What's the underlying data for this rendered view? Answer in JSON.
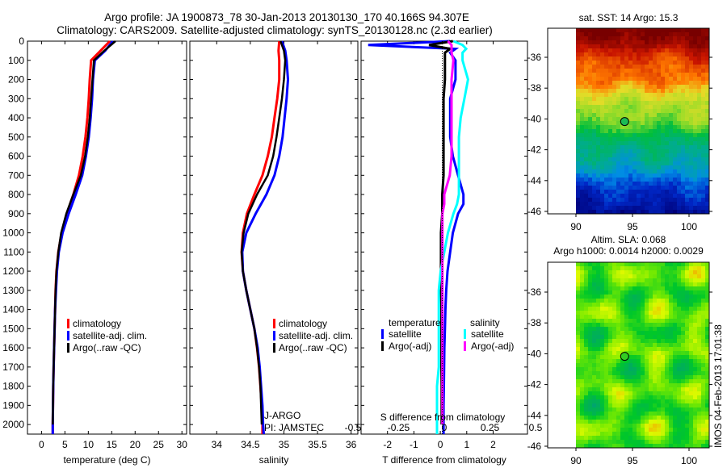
{
  "title_line1": "Argo profile: JA 1900873_78 30-Jan-2013 20130130_170 40.166S 94.307E",
  "title_line2": "Climatology: CARS2009. Satellite-adjusted climatology: synTS_20130128.nc (2.3d earlier)",
  "watermark": "IMOS 04-Feb-2013 17:01:38",
  "colors": {
    "climatology": "#ff0000",
    "satellite": "#0000ff",
    "argo": "#000000",
    "sal_satellite": "#00ffff",
    "sal_argo": "#ff00ff"
  },
  "chart_data": [
    {
      "type": "line",
      "xlabel": "temperature (deg C)",
      "ylabel": "",
      "xlim": [
        -3,
        31
      ],
      "ylim": [
        2050,
        0
      ],
      "xticks": [
        "0",
        "5",
        "10",
        "15",
        "20",
        "25",
        "30"
      ],
      "yticks": [
        "0",
        "100",
        "200",
        "300",
        "400",
        "500",
        "600",
        "700",
        "800",
        "900",
        "1000",
        "1100",
        "1200",
        "1300",
        "1400",
        "1500",
        "1600",
        "1700",
        "1800",
        "1900",
        "2000"
      ],
      "depth": [
        0,
        50,
        100,
        200,
        300,
        400,
        500,
        600,
        700,
        800,
        900,
        1000,
        1100,
        1200,
        1300,
        1400,
        1500,
        1600,
        1700,
        1800,
        1900,
        2000,
        2050
      ],
      "legend": [
        "climatology",
        "satellite-adj. clim.",
        "Argo(..raw -QC)"
      ],
      "series": [
        {
          "name": "climatology",
          "values": [
            14.6,
            12.6,
            10.6,
            10.3,
            10.1,
            9.8,
            9.4,
            8.8,
            8.0,
            6.8,
            5.4,
            4.3,
            3.6,
            3.2,
            3.0,
            2.9,
            2.8,
            2.7,
            2.6,
            2.5,
            2.45,
            2.4,
            2.4
          ]
        },
        {
          "name": "satellite-adj. clim.",
          "values": [
            15.2,
            13.6,
            11.4,
            11.0,
            10.8,
            10.5,
            10.1,
            9.5,
            8.7,
            7.3,
            5.8,
            4.5,
            3.7,
            3.3,
            3.1,
            2.9,
            2.8,
            2.7,
            2.6,
            2.5,
            2.45,
            2.4,
            2.4
          ]
        },
        {
          "name": "Argo(..raw -QC)",
          "values": [
            15.8,
            13.4,
            11.2,
            10.9,
            10.6,
            10.3,
            9.9,
            9.3,
            8.4,
            6.8,
            5.3,
            4.2,
            3.6,
            3.2,
            3.0,
            2.9,
            2.8,
            2.7,
            2.6,
            2.5,
            2.45,
            2.4,
            null
          ]
        }
      ]
    },
    {
      "type": "line",
      "xlabel": "salinity",
      "xlim": [
        33.6,
        36.1
      ],
      "ylim": [
        2050,
        0
      ],
      "xticks": [
        "34",
        "34.5",
        "35",
        "35.5",
        "36"
      ],
      "depth": [
        0,
        50,
        100,
        200,
        300,
        400,
        500,
        600,
        700,
        800,
        900,
        1000,
        1100,
        1200,
        1300,
        1400,
        1500,
        1600,
        1700,
        1800,
        1900,
        2000,
        2050
      ],
      "legend": [
        "climatology",
        "satellite-adj. clim.",
        "Argo(..raw -QC)"
      ],
      "annotation": [
        "J-ARGO",
        "PI: JAMSTEC"
      ],
      "series": [
        {
          "name": "climatology",
          "values": [
            34.93,
            34.92,
            34.93,
            34.93,
            34.9,
            34.86,
            34.82,
            34.76,
            34.68,
            34.56,
            34.45,
            34.39,
            34.37,
            34.39,
            34.44,
            34.5,
            34.56,
            34.6,
            34.63,
            34.65,
            34.67,
            34.68,
            34.68
          ]
        },
        {
          "name": "satellite-adj. clim.",
          "values": [
            34.97,
            35.02,
            35.04,
            35.06,
            35.04,
            35.01,
            34.98,
            34.93,
            34.86,
            34.74,
            34.58,
            34.44,
            34.38,
            34.39,
            34.44,
            34.5,
            34.56,
            34.61,
            34.64,
            34.66,
            34.68,
            34.69,
            34.7
          ]
        },
        {
          "name": "Argo(..raw -QC)",
          "values": [
            34.95,
            35.0,
            35.02,
            35.0,
            34.97,
            34.93,
            34.89,
            34.84,
            34.76,
            34.6,
            34.47,
            34.4,
            34.37,
            34.39,
            34.44,
            34.5,
            34.56,
            34.6,
            34.63,
            34.65,
            34.66,
            34.67,
            null
          ]
        }
      ]
    },
    {
      "type": "line",
      "xlabel": "T difference from climatology",
      "x2label": "S difference from climatology",
      "xlim": [
        -3,
        3.3
      ],
      "ylim": [
        2050,
        0
      ],
      "xticks": [
        "-2",
        "-1",
        "0",
        "1",
        "2"
      ],
      "x2ticks": [
        "-0.5",
        "-0.25",
        "0",
        "0.25",
        "0.5"
      ],
      "depth": [
        0,
        20,
        40,
        60,
        100,
        200,
        300,
        400,
        500,
        600,
        700,
        800,
        850,
        900,
        1000,
        1100,
        1200,
        1300,
        1400,
        1500,
        1600,
        1700,
        1800,
        1900,
        2000,
        2050
      ],
      "legend_temperature_title": "temperature",
      "legend_salinity_title": "salinity",
      "legend": [
        "satellite",
        "Argo(-adj)",
        "satellite",
        "Argo(-adj)"
      ],
      "series": [
        {
          "name": "temperature satellite",
          "values": [
            0.3,
            -2.8,
            0.5,
            0.3,
            0.5,
            0.5,
            0.3,
            0.3,
            0.3,
            0.4,
            0.6,
            0.8,
            0.8,
            0.6,
            0.4,
            0.3,
            0.2,
            0.15,
            0.12,
            0.1,
            0.08,
            0.07,
            0.06,
            0.05,
            0.05,
            0.05
          ]
        },
        {
          "name": "temperature Argo(-adj)",
          "values": [
            0.4,
            -0.5,
            0.3,
            0.1,
            0.1,
            0.1,
            0.05,
            0.05,
            0.05,
            0.05,
            0.05,
            0.0,
            0.0,
            0.0,
            -0.05,
            -0.05,
            -0.05,
            -0.05,
            -0.03,
            -0.03,
            -0.03,
            -0.03,
            -0.02,
            -0.02,
            -0.02,
            null
          ]
        },
        {
          "name": "salinity satellite",
          "values": [
            0.05,
            0.1,
            0.12,
            0.1,
            0.1,
            0.13,
            0.11,
            0.09,
            0.08,
            0.08,
            0.08,
            0.08,
            0.07,
            0.05,
            0.02,
            0.0,
            -0.02,
            -0.03,
            -0.03,
            -0.03,
            -0.03,
            -0.03,
            -0.04,
            -0.04,
            -0.04,
            -0.04
          ]
        },
        {
          "name": "salinity Argo(-adj)",
          "values": [
            0.02,
            0.04,
            0.04,
            0.04,
            0.05,
            0.04,
            0.04,
            0.04,
            0.04,
            0.04,
            0.03,
            0.0,
            0.0,
            -0.01,
            -0.01,
            -0.01,
            -0.01,
            -0.01,
            -0.01,
            -0.01,
            -0.01,
            -0.01,
            -0.01,
            -0.01,
            -0.01,
            null
          ]
        }
      ]
    },
    {
      "type": "heatmap",
      "title": "sat. SST: 14 Argo: 15.3",
      "xlim": [
        87.5,
        101
      ],
      "ylim": [
        -46.2,
        -34.8
      ],
      "xticks": [
        "90",
        "95",
        "100"
      ],
      "yticks": [
        "-36",
        "-38",
        "-40",
        "-42",
        "-44",
        "-46"
      ],
      "marker": {
        "lon": 94.307,
        "lat": -40.166
      }
    },
    {
      "type": "heatmap",
      "title": "Altim. SLA: 0.068",
      "subtitle": "Argo h1000: 0.0014 h2000: 0.0029",
      "xlim": [
        87.5,
        101
      ],
      "ylim": [
        -46.1,
        -34.3
      ],
      "xticks": [
        "90",
        "95",
        "100"
      ],
      "yticks": [
        "-36",
        "-38",
        "-40",
        "-42",
        "-44",
        "-46"
      ],
      "marker": {
        "lon": 94.307,
        "lat": -40.166
      }
    }
  ]
}
